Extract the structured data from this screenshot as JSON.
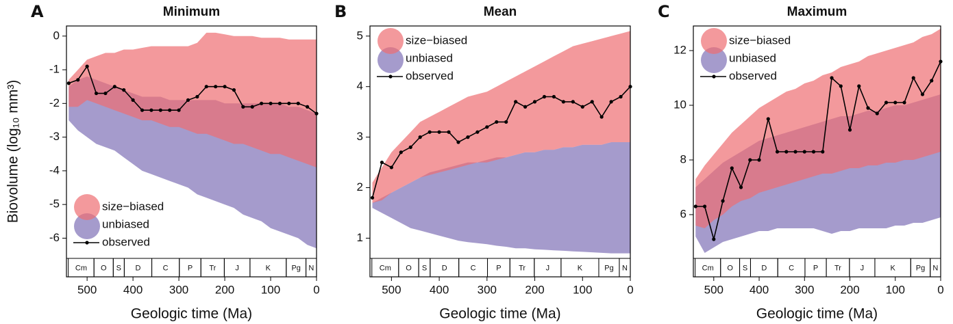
{
  "time_scale": [
    {
      "label": "Cm",
      "start": 541,
      "end": 485
    },
    {
      "label": "O",
      "start": 485,
      "end": 443
    },
    {
      "label": "S",
      "start": 443,
      "end": 419
    },
    {
      "label": "D",
      "start": 419,
      "end": 359
    },
    {
      "label": "C",
      "start": 359,
      "end": 299
    },
    {
      "label": "P",
      "start": 299,
      "end": 252
    },
    {
      "label": "Tr",
      "start": 252,
      "end": 201
    },
    {
      "label": "J",
      "start": 201,
      "end": 145
    },
    {
      "label": "K",
      "start": 145,
      "end": 66
    },
    {
      "label": "Pg",
      "start": 66,
      "end": 23
    },
    {
      "label": "N",
      "start": 23,
      "end": 0
    }
  ],
  "chart_data": [
    {
      "type": "band",
      "label": "A",
      "title": "Minimum",
      "ylabel": "Biovolume (log₁₀ mm³)",
      "xlabel": "Geologic time (Ma)",
      "legend": "lower left",
      "xlim": [
        545,
        0
      ],
      "xticks": [
        500,
        400,
        300,
        200,
        100,
        0
      ],
      "ylim": [
        -6.6,
        0.3
      ],
      "yticks": [
        0,
        -1,
        -2,
        -3,
        -4,
        -5,
        -6
      ],
      "x": [
        540,
        520,
        500,
        480,
        460,
        440,
        420,
        400,
        380,
        360,
        340,
        320,
        300,
        280,
        260,
        240,
        220,
        200,
        180,
        160,
        140,
        120,
        100,
        80,
        60,
        40,
        20,
        0
      ],
      "series": [
        {
          "name": "size−biased",
          "color": "#ee6e72",
          "upper": [
            -1.3,
            -1.0,
            -0.7,
            -0.6,
            -0.5,
            -0.5,
            -0.4,
            -0.4,
            -0.35,
            -0.3,
            -0.3,
            -0.3,
            -0.3,
            -0.3,
            -0.2,
            0.1,
            0.1,
            0.05,
            0,
            0,
            0,
            -0.05,
            -0.05,
            -0.05,
            -0.1,
            -0.1,
            -0.1,
            -0.1
          ],
          "lower": [
            -2.1,
            -2.1,
            -1.9,
            -2.0,
            -2.1,
            -2.2,
            -2.3,
            -2.4,
            -2.5,
            -2.5,
            -2.6,
            -2.7,
            -2.7,
            -2.8,
            -2.9,
            -2.9,
            -3.0,
            -3.1,
            -3.2,
            -3.2,
            -3.3,
            -3.4,
            -3.5,
            -3.5,
            -3.6,
            -3.7,
            -3.8,
            -3.9
          ]
        },
        {
          "name": "unbiased",
          "color": "#a59bcc",
          "upper": [
            -1.5,
            -1.3,
            -1.2,
            -1.3,
            -1.4,
            -1.5,
            -1.6,
            -1.7,
            -1.8,
            -1.8,
            -1.8,
            -1.9,
            -1.9,
            -1.9,
            -1.9,
            -1.9,
            -1.9,
            -2.0,
            -2.0,
            -2.0,
            -2.0,
            -2.0,
            -2.0,
            -2.0,
            -2.1,
            -2.1,
            -2.2,
            -2.3
          ],
          "lower": [
            -2.5,
            -2.8,
            -3.0,
            -3.2,
            -3.3,
            -3.4,
            -3.6,
            -3.8,
            -4.0,
            -4.1,
            -4.2,
            -4.3,
            -4.4,
            -4.5,
            -4.7,
            -4.8,
            -4.9,
            -5.0,
            -5.1,
            -5.3,
            -5.4,
            -5.5,
            -5.7,
            -5.8,
            -5.9,
            -6.0,
            -6.2,
            -6.3
          ]
        },
        {
          "name": "observed",
          "color": "#000000",
          "values": [
            -1.4,
            -1.3,
            -0.9,
            -1.7,
            -1.7,
            -1.5,
            -1.6,
            -1.9,
            -2.2,
            -2.2,
            -2.2,
            -2.2,
            -2.2,
            -1.9,
            -1.8,
            -1.5,
            -1.5,
            -1.5,
            -1.6,
            -2.1,
            -2.1,
            -2.0,
            -2.0,
            -2.0,
            -2.0,
            -2.0,
            -2.1,
            -2.3
          ]
        }
      ]
    },
    {
      "type": "band",
      "label": "B",
      "title": "Mean",
      "xlabel": "Geologic time (Ma)",
      "legend": "upper left",
      "xlim": [
        545,
        0
      ],
      "xticks": [
        500,
        400,
        300,
        200,
        100,
        0
      ],
      "ylim": [
        0.6,
        5.2
      ],
      "yticks": [
        1,
        2,
        3,
        4,
        5
      ],
      "x": [
        540,
        520,
        500,
        480,
        460,
        440,
        420,
        400,
        380,
        360,
        340,
        320,
        300,
        280,
        260,
        240,
        220,
        200,
        180,
        160,
        140,
        120,
        100,
        80,
        60,
        40,
        20,
        0
      ],
      "series": [
        {
          "name": "size−biased",
          "color": "#ee6e72",
          "upper": [
            2.1,
            2.4,
            2.7,
            2.9,
            3.1,
            3.3,
            3.4,
            3.5,
            3.6,
            3.7,
            3.8,
            3.85,
            3.9,
            4.0,
            4.1,
            4.2,
            4.3,
            4.4,
            4.5,
            4.6,
            4.7,
            4.8,
            4.85,
            4.9,
            4.95,
            5.0,
            5.05,
            5.1
          ],
          "lower": [
            1.7,
            1.75,
            1.9,
            2.0,
            2.1,
            2.2,
            2.25,
            2.3,
            2.35,
            2.4,
            2.45,
            2.5,
            2.5,
            2.55,
            2.6,
            2.65,
            2.7,
            2.7,
            2.75,
            2.75,
            2.8,
            2.8,
            2.85,
            2.85,
            2.85,
            2.9,
            2.9,
            2.9
          ]
        },
        {
          "name": "unbiased",
          "color": "#a59bcc",
          "upper": [
            1.7,
            1.8,
            1.9,
            2.0,
            2.1,
            2.2,
            2.3,
            2.35,
            2.4,
            2.45,
            2.5,
            2.5,
            2.55,
            2.6,
            2.6,
            2.65,
            2.7,
            2.7,
            2.75,
            2.75,
            2.8,
            2.8,
            2.85,
            2.85,
            2.85,
            2.9,
            2.9,
            2.9
          ],
          "lower": [
            1.6,
            1.5,
            1.4,
            1.3,
            1.2,
            1.15,
            1.1,
            1.05,
            1.0,
            0.95,
            0.92,
            0.9,
            0.88,
            0.85,
            0.83,
            0.8,
            0.8,
            0.78,
            0.77,
            0.76,
            0.75,
            0.74,
            0.73,
            0.72,
            0.71,
            0.7,
            0.7,
            0.7
          ]
        },
        {
          "name": "observed",
          "color": "#000000",
          "values": [
            1.8,
            2.5,
            2.4,
            2.7,
            2.8,
            3.0,
            3.1,
            3.1,
            3.1,
            2.9,
            3.0,
            3.1,
            3.2,
            3.3,
            3.3,
            3.7,
            3.6,
            3.7,
            3.8,
            3.8,
            3.7,
            3.7,
            3.6,
            3.7,
            3.4,
            3.7,
            3.8,
            4.0
          ]
        }
      ]
    },
    {
      "type": "band",
      "label": "C",
      "title": "Maximum",
      "xlabel": "Geologic time (Ma)",
      "legend": "upper left",
      "xlim": [
        545,
        0
      ],
      "xticks": [
        500,
        400,
        300,
        200,
        100,
        0
      ],
      "ylim": [
        4.4,
        12.9
      ],
      "yticks": [
        6,
        8,
        10,
        12
      ],
      "x": [
        540,
        520,
        500,
        480,
        460,
        440,
        420,
        400,
        380,
        360,
        340,
        320,
        300,
        280,
        260,
        240,
        220,
        200,
        180,
        160,
        140,
        120,
        100,
        80,
        60,
        40,
        20,
        0
      ],
      "series": [
        {
          "name": "size−biased",
          "color": "#ee6e72",
          "upper": [
            7.3,
            7.8,
            8.2,
            8.6,
            9.0,
            9.3,
            9.6,
            9.9,
            10.1,
            10.3,
            10.5,
            10.6,
            10.8,
            10.9,
            11.1,
            11.2,
            11.4,
            11.5,
            11.6,
            11.8,
            11.9,
            12.0,
            12.1,
            12.2,
            12.3,
            12.5,
            12.6,
            12.8
          ],
          "lower": [
            5.6,
            5.5,
            5.8,
            6.0,
            6.3,
            6.5,
            6.6,
            6.8,
            6.9,
            7.0,
            7.1,
            7.2,
            7.3,
            7.4,
            7.5,
            7.5,
            7.6,
            7.7,
            7.7,
            7.8,
            7.8,
            7.9,
            7.9,
            8.0,
            8.0,
            8.1,
            8.2,
            8.3
          ]
        },
        {
          "name": "unbiased",
          "color": "#a59bcc",
          "upper": [
            7.0,
            7.3,
            7.6,
            7.9,
            8.1,
            8.3,
            8.5,
            8.7,
            8.8,
            8.9,
            9.0,
            9.1,
            9.2,
            9.3,
            9.4,
            9.5,
            9.6,
            9.6,
            9.7,
            9.8,
            9.8,
            9.9,
            10.0,
            10.0,
            10.1,
            10.2,
            10.3,
            10.4
          ],
          "lower": [
            5.2,
            4.6,
            4.8,
            5.0,
            5.1,
            5.2,
            5.3,
            5.4,
            5.4,
            5.5,
            5.5,
            5.5,
            5.5,
            5.5,
            5.4,
            5.3,
            5.4,
            5.4,
            5.5,
            5.5,
            5.5,
            5.5,
            5.6,
            5.6,
            5.7,
            5.7,
            5.8,
            5.9
          ]
        },
        {
          "name": "observed",
          "color": "#000000",
          "values": [
            6.3,
            6.3,
            5.1,
            6.5,
            7.7,
            7.0,
            8.0,
            8.0,
            9.5,
            8.3,
            8.3,
            8.3,
            8.3,
            8.3,
            8.3,
            11.0,
            10.7,
            9.1,
            10.7,
            9.9,
            9.7,
            10.1,
            10.1,
            10.1,
            11.0,
            10.4,
            10.9,
            11.6
          ]
        }
      ]
    }
  ]
}
